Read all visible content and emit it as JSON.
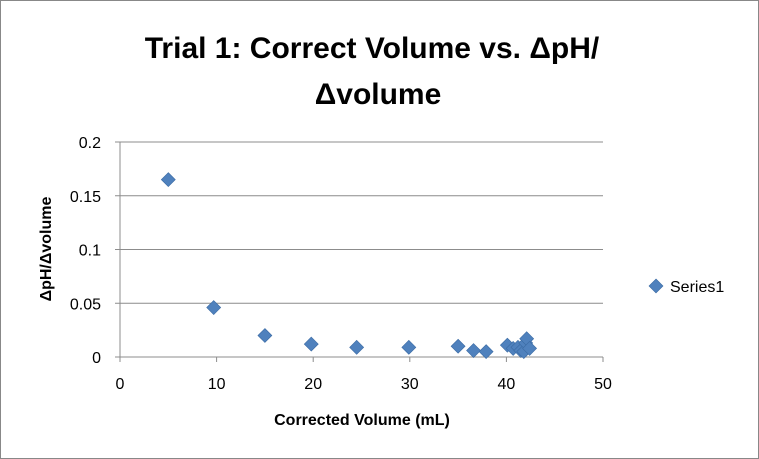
{
  "chart_data": {
    "type": "scatter",
    "title_line1": "Trial 1: Correct Volume vs. ΔpH/",
    "title_line2": "Δvolume",
    "xlabel": "Corrected Volume (mL)",
    "ylabel": "ΔpH/Δvolume",
    "xlim": [
      0,
      50
    ],
    "ylim": [
      0,
      0.2
    ],
    "x_ticks": [
      "0",
      "10",
      "20",
      "30",
      "40",
      "50"
    ],
    "y_ticks": [
      "0",
      "0.05",
      "0.1",
      "0.15",
      "0.2"
    ],
    "grid": "horizontal",
    "legend_position": "right",
    "marker_color": "#4f81bd",
    "series": [
      {
        "name": "Series1",
        "points": [
          [
            5.0,
            0.165
          ],
          [
            9.7,
            0.046
          ],
          [
            15.0,
            0.02
          ],
          [
            19.8,
            0.012
          ],
          [
            24.5,
            0.009
          ],
          [
            29.9,
            0.009
          ],
          [
            35.0,
            0.01
          ],
          [
            36.6,
            0.006
          ],
          [
            37.9,
            0.005
          ],
          [
            40.1,
            0.011
          ],
          [
            40.7,
            0.008
          ],
          [
            41.2,
            0.009
          ],
          [
            41.5,
            0.006
          ],
          [
            41.8,
            0.005
          ],
          [
            42.0,
            0.013
          ],
          [
            42.1,
            0.017
          ],
          [
            42.4,
            0.008
          ]
        ]
      }
    ]
  }
}
